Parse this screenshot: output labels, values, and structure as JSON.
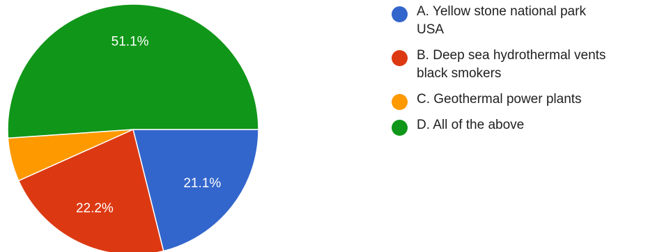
{
  "chart_data": {
    "type": "pie",
    "slices": [
      {
        "label": "A. Yellow stone national park\nUSA",
        "value": 21.1,
        "color": "#3366cc",
        "data_label": "21.1%"
      },
      {
        "label": "B. Deep sea hydrothermal vents\nblack smokers",
        "value": 22.2,
        "color": "#dc3912",
        "data_label": "22.2%"
      },
      {
        "label": "C. Geothermal power plants",
        "value": 5.6,
        "color": "#ff9900",
        "data_label": ""
      },
      {
        "label": "D. All of the above",
        "value": 51.1,
        "color": "#109618",
        "data_label": "51.1%"
      }
    ],
    "legend_position": "right"
  },
  "legend": {
    "items": [
      {
        "line1": "A. Yellow stone national park",
        "line2": "USA"
      },
      {
        "line1": "B. Deep sea hydrothermal vents",
        "line2": "black smokers"
      },
      {
        "line1": "C. Geothermal power plants",
        "line2": ""
      },
      {
        "line1": "D. All of the above",
        "line2": ""
      }
    ]
  }
}
